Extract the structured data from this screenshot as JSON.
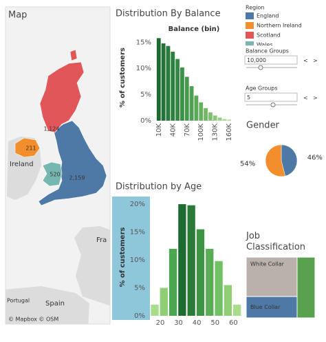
{
  "chart_data": [
    {
      "type": "map",
      "title": "Map",
      "legend_title": "Region",
      "categories": [
        "England",
        "Northern Ireland",
        "Scotland",
        "Wales"
      ],
      "values": [
        2159,
        211,
        1124,
        520
      ],
      "value_labels": [
        "2,159",
        "211",
        "1,124",
        "520"
      ],
      "colors": [
        "#4e79a7",
        "#f28e2b",
        "#e15759",
        "#76b7b2"
      ],
      "place_labels": [
        "Ireland",
        "Fra",
        "Spain",
        "Portugal"
      ],
      "attribution": "© Mapbox © OSM"
    },
    {
      "type": "bar",
      "title": "Distribution By Balance",
      "subtitle": "Balance (bin)",
      "y_label": "% of customers",
      "x": [
        10000,
        20000,
        30000,
        40000,
        50000,
        60000,
        70000,
        80000,
        90000,
        100000,
        110000,
        120000,
        130000,
        140000,
        150000,
        160000
      ],
      "values": [
        15.8,
        14.8,
        14.3,
        13.2,
        11.8,
        10.2,
        8.4,
        6.6,
        4.8,
        3.5,
        2.4,
        1.6,
        1.0,
        0.6,
        0.3,
        0.2
      ],
      "colors": [
        "#1e6b31",
        "#22723a",
        "#27793c",
        "#2d803f",
        "#348843",
        "#3c9047",
        "#45984c",
        "#4fa052",
        "#5aa858",
        "#66b05f",
        "#72b866",
        "#7ec06e",
        "#8ac876",
        "#96cf7f",
        "#a2d688",
        "#aedd91"
      ],
      "xlim": [
        3000,
        167000
      ],
      "xticks": [
        {
          "value": 10000,
          "label": "10K"
        },
        {
          "value": 40000,
          "label": "40K"
        },
        {
          "value": 70000,
          "label": "70K"
        },
        {
          "value": 100000,
          "label": "100K"
        },
        {
          "value": 130000,
          "label": "130K"
        },
        {
          "value": 160000,
          "label": "160K"
        }
      ],
      "ylim": [
        0,
        16.5
      ],
      "yticks": [
        {
          "value": 0,
          "label": "0%"
        },
        {
          "value": 5,
          "label": "5%"
        },
        {
          "value": 10,
          "label": "10%"
        },
        {
          "value": 15,
          "label": "15%"
        }
      ]
    },
    {
      "type": "bar",
      "title": "Distribution by Age",
      "y_label": "% of customers",
      "x": [
        17,
        22,
        27,
        32,
        37,
        42,
        47,
        52,
        57,
        62
      ],
      "values": [
        2,
        5,
        12,
        20,
        19.8,
        15.5,
        12,
        9.8,
        5.5,
        2
      ],
      "colors": [
        "#a9dc8c",
        "#8fce74",
        "#4aa750",
        "#1e6b31",
        "#2a7a38",
        "#3d9445",
        "#5aad55",
        "#74c165",
        "#8fce74",
        "#a9dc8c"
      ],
      "xlim": [
        14,
        64
      ],
      "xticks": [
        20,
        30,
        40,
        50,
        60
      ],
      "ylim": [
        0,
        21
      ],
      "yticks": [
        {
          "value": 0,
          "label": "0%"
        },
        {
          "value": 5,
          "label": "5%"
        },
        {
          "value": 10,
          "label": "10%"
        },
        {
          "value": 15,
          "label": "15%"
        },
        {
          "value": 20,
          "label": "20%"
        }
      ]
    },
    {
      "type": "pie",
      "title": "Gender",
      "values": [
        46,
        54
      ],
      "value_labels": [
        "46%",
        "54%"
      ],
      "colors": [
        "#4e79a7",
        "#f28e2b"
      ]
    },
    {
      "type": "treemap",
      "title": "Job Classification",
      "categories": [
        "White Collar",
        "Blue Collar",
        null
      ],
      "values": [
        48,
        26,
        26
      ],
      "colors": [
        "#bab0ac",
        "#4e79a7",
        "#59a14f"
      ]
    }
  ],
  "filters": [
    {
      "label": "Balance Groups",
      "value": "10,000"
    },
    {
      "label": "Age Groups",
      "value": "5"
    }
  ]
}
